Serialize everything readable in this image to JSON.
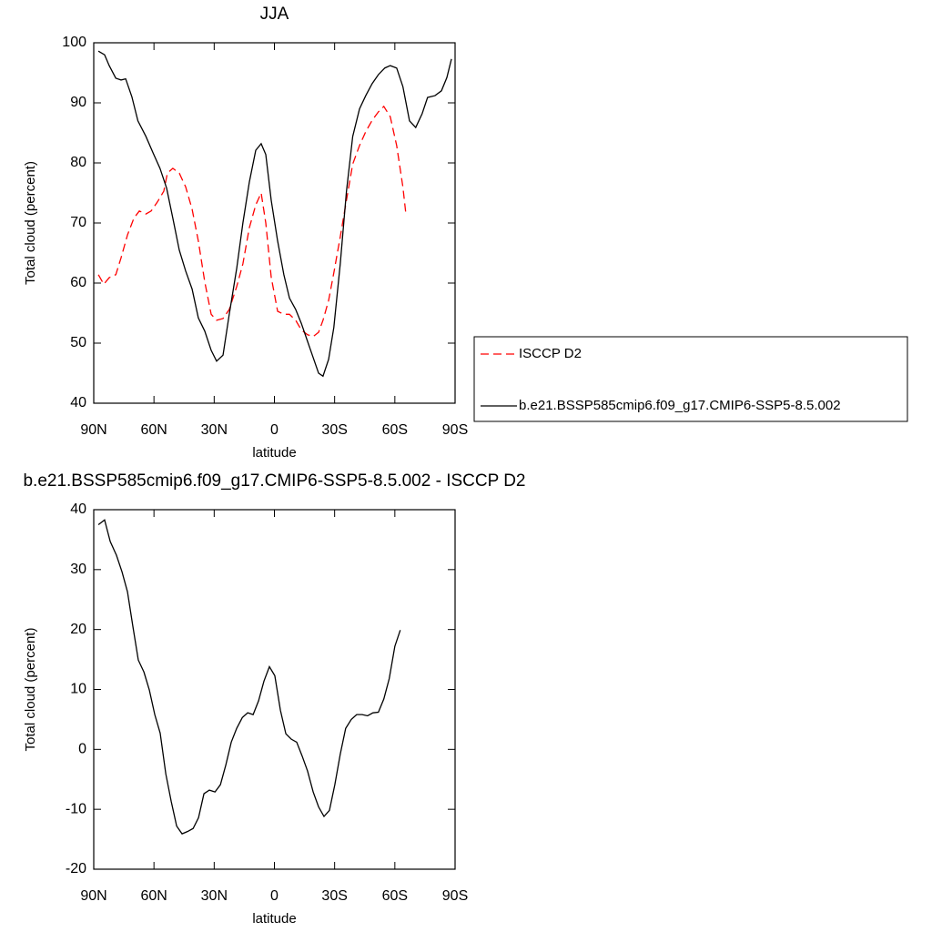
{
  "chart_data": [
    {
      "type": "line",
      "title": "JJA",
      "xlabel": "latitude",
      "ylabel": "Total cloud (percent)",
      "xlim": [
        90,
        -90
      ],
      "xticks": [
        {
          "value": 90,
          "label": "90N"
        },
        {
          "value": 60,
          "label": "60N"
        },
        {
          "value": 30,
          "label": "30N"
        },
        0,
        {
          "value": -30,
          "label": "30S"
        },
        {
          "value": -60,
          "label": "60S"
        },
        {
          "value": -90,
          "label": "90S"
        }
      ],
      "ylim": [
        40,
        100
      ],
      "yticks": [
        40,
        50,
        60,
        70,
        80,
        90,
        100
      ],
      "legend": "right",
      "series": [
        {
          "name": "ISCCP D2",
          "color": "#ff0000",
          "dashed": true,
          "x": [
            87.7,
            85,
            82.3,
            79,
            76.4,
            73.2,
            70,
            67.3,
            64,
            61.4,
            58.3,
            55.1,
            53.3,
            50.6,
            47.4,
            44.2,
            41,
            37.9,
            34.7,
            31.5,
            28.8,
            25.6,
            22.5,
            18.8,
            15.7,
            12.5,
            9.3,
            6.6,
            4.3,
            1.6,
            -1.6,
            -4.7,
            -7.5,
            -10.6,
            -13.4,
            -16.5,
            -19.3,
            -22,
            -24.2,
            -27,
            -29.6,
            -32.8,
            -35.9,
            -39,
            -42.4,
            -45.5,
            -48.7,
            -51.8,
            -54.5,
            -57.7,
            -60.9,
            -64,
            -65.5
          ],
          "values": [
            61.4,
            59.8,
            60.9,
            61.4,
            64.2,
            68,
            70.8,
            72,
            71.5,
            72,
            73.5,
            75.3,
            78.3,
            79.1,
            78.3,
            76,
            72.3,
            67,
            60.2,
            54.8,
            53.8,
            54.1,
            55.6,
            59.4,
            63.2,
            69.2,
            73,
            75,
            70,
            61,
            55.3,
            54.8,
            54.8,
            53.8,
            52.2,
            51.4,
            51.1,
            51.8,
            53.8,
            57.1,
            61.7,
            67.7,
            73.8,
            79.8,
            82.9,
            85.2,
            87.1,
            88.5,
            89.4,
            87.7,
            82.9,
            76,
            71.5
          ]
        },
        {
          "name": "b.e21.BSSP585cmip6.f09_g17.CMIP6-SSP5-8.5.002",
          "color": "#000000",
          "dashed": false,
          "x": [
            87.7,
            84.6,
            82.3,
            79,
            76.4,
            74.1,
            71,
            68,
            64,
            60.5,
            57,
            53.7,
            50.6,
            47.4,
            44.2,
            41,
            37.9,
            34.7,
            31.5,
            28.8,
            25.6,
            22.5,
            18.8,
            15.7,
            12.5,
            9.3,
            6.6,
            4.3,
            1.6,
            -1.6,
            -4.7,
            -7.5,
            -10.6,
            -13.4,
            -16.5,
            -19.3,
            -22,
            -24.2,
            -27,
            -29.6,
            -32.8,
            -35.9,
            -39,
            -42.4,
            -45.5,
            -48.7,
            -51.8,
            -55,
            -57.7,
            -60.9,
            -64,
            -67.3,
            -70.4,
            -73.6,
            -76.3,
            -80,
            -83.2,
            -85.9,
            -88.2
          ],
          "values": [
            98.6,
            98,
            96.2,
            94.1,
            93.8,
            94,
            91,
            87,
            84.4,
            81.7,
            79.1,
            75.8,
            70.8,
            65.5,
            62,
            59,
            54.2,
            52,
            48.8,
            47,
            48,
            54.8,
            62.4,
            70,
            76.8,
            82.1,
            83.2,
            81.4,
            73.8,
            67,
            61.4,
            57.5,
            55.6,
            53.3,
            50.3,
            47.6,
            45,
            44.5,
            47.3,
            52.6,
            63.2,
            75.3,
            84.4,
            89,
            91.2,
            93.2,
            94.7,
            95.8,
            96.2,
            95.8,
            92.7,
            87,
            85.9,
            88.2,
            90.9,
            91.2,
            92,
            94.2,
            97.3
          ]
        }
      ]
    },
    {
      "type": "line",
      "title": "b.e21.BSSP585cmip6.f09_g17.CMIP6-SSP5-8.5.002 - ISCCP D2",
      "xlabel": "latitude",
      "ylabel": "Total cloud (percent)",
      "xlim": [
        90,
        -90
      ],
      "xticks": [
        {
          "value": 90,
          "label": "90N"
        },
        {
          "value": 60,
          "label": "60N"
        },
        {
          "value": 30,
          "label": "30N"
        },
        0,
        {
          "value": -30,
          "label": "30S"
        },
        {
          "value": -60,
          "label": "60S"
        },
        {
          "value": -90,
          "label": "90S"
        }
      ],
      "ylim": [
        -20,
        40
      ],
      "yticks": [
        -20,
        -10,
        0,
        10,
        20,
        30,
        40
      ],
      "series": [
        {
          "color": "#000000",
          "dashed": false,
          "x": [
            87.7,
            84.6,
            81.8,
            78.7,
            75.9,
            73.2,
            70.5,
            67.8,
            65,
            62.3,
            59.6,
            56.9,
            54.1,
            51.4,
            48.7,
            46,
            43.2,
            40.5,
            37.8,
            35.1,
            32.4,
            29.6,
            26.9,
            24.2,
            21.5,
            18.8,
            16,
            13.3,
            10.6,
            7.9,
            5.2,
            2.5,
            -0.2,
            -3,
            -5.7,
            -8.4,
            -11.1,
            -13.8,
            -16.5,
            -19.3,
            -22,
            -24.7,
            -27.4,
            -30.1,
            -32.8,
            -35.5,
            -38.3,
            -41,
            -43.7,
            -46.4,
            -49.1,
            -51.8,
            -54.5,
            -57.2,
            -60,
            -62.7
          ],
          "values": [
            37.5,
            38.3,
            34.7,
            32.4,
            29.6,
            26.3,
            20.5,
            14.9,
            12.9,
            9.9,
            5.8,
            2.7,
            -4.1,
            -8.7,
            -12.8,
            -14.1,
            -13.7,
            -13.2,
            -11.4,
            -7.4,
            -6.8,
            -7.1,
            -5.9,
            -2.6,
            1.2,
            3.5,
            5.3,
            6.1,
            5.8,
            8.1,
            11.4,
            13.8,
            12.3,
            6.5,
            2.6,
            1.7,
            1.2,
            -1.1,
            -3.6,
            -7.1,
            -9.6,
            -11.2,
            -10.2,
            -5.9,
            -0.8,
            3.5,
            5,
            5.8,
            5.8,
            5.6,
            6.1,
            6.2,
            8.4,
            11.8,
            17.2,
            19.9
          ]
        }
      ]
    }
  ]
}
